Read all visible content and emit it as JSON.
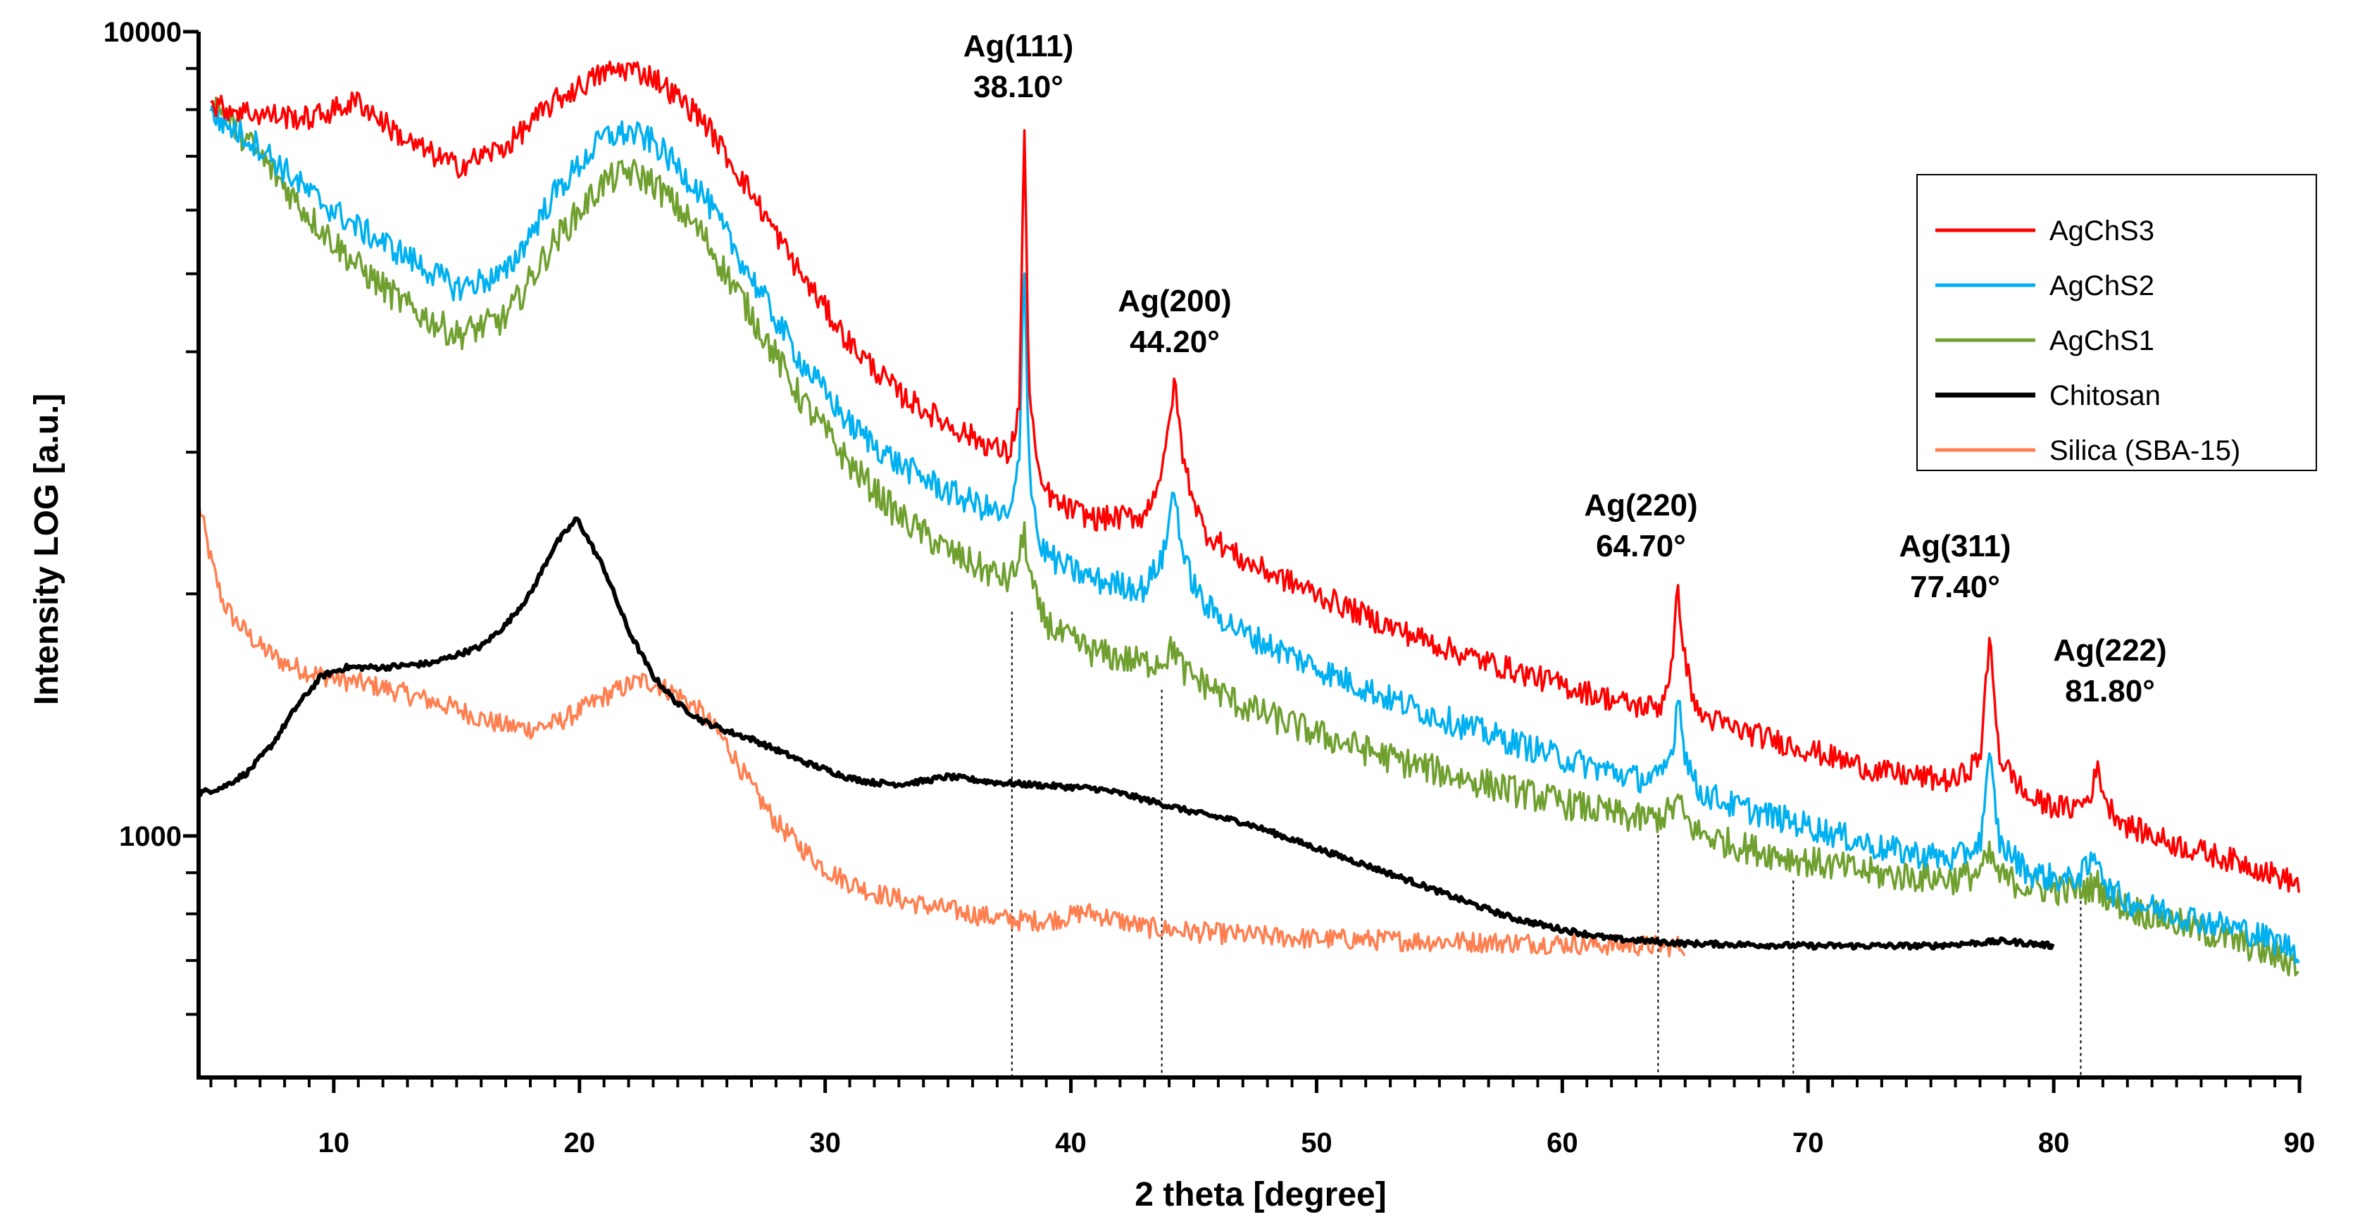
{
  "chart_data": {
    "type": "line",
    "title": "",
    "xlabel": "2 theta [degree]",
    "ylabel": "Intensity LOG [a.u.]",
    "xlim": [
      4.5,
      90
    ],
    "ylim": [
      500,
      10000
    ],
    "yscale": "log",
    "x_ticks": [
      10,
      20,
      30,
      40,
      50,
      60,
      70,
      80,
      90
    ],
    "x_tick_labels": [
      "10",
      "20",
      "30",
      "40",
      "50",
      "60",
      "70",
      "80",
      "90"
    ],
    "y_tick_labels_shown": [
      {
        "value": 10000,
        "label": "10000"
      },
      {
        "value": 1000,
        "label": "1000"
      }
    ],
    "y_minor_ticks": [
      600,
      700,
      800,
      900,
      2000,
      3000,
      4000,
      5000,
      6000,
      7000,
      8000,
      9000
    ],
    "legend_position": "top-right",
    "series": [
      {
        "name": "AgChS3",
        "color": "#ff0000",
        "x": [
          5,
          7,
          9,
          11,
          13,
          15,
          17,
          19,
          21,
          22,
          23,
          25,
          27,
          29,
          31,
          33,
          35,
          36.5,
          37.5,
          37.9,
          38.1,
          38.3,
          38.7,
          39.5,
          41,
          43,
          43.8,
          44.2,
          44.6,
          45.4,
          47,
          50,
          53,
          56,
          60,
          63,
          64,
          64.5,
          64.7,
          65,
          65.5,
          67,
          70,
          73,
          76,
          77,
          77.4,
          77.8,
          79,
          80.6,
          81.4,
          81.8,
          82.2,
          83,
          85,
          88,
          90
        ],
        "y": [
          8100,
          7900,
          7800,
          8200,
          7300,
          6800,
          7200,
          8200,
          8900,
          9000,
          8800,
          7800,
          6300,
          5000,
          4100,
          3550,
          3250,
          3080,
          2980,
          3400,
          7600,
          3600,
          2750,
          2580,
          2480,
          2500,
          2900,
          3680,
          2900,
          2400,
          2200,
          2000,
          1820,
          1680,
          1540,
          1450,
          1450,
          1650,
          2050,
          1650,
          1420,
          1360,
          1280,
          1200,
          1170,
          1250,
          1760,
          1250,
          1110,
          1080,
          1110,
          1210,
          1090,
          1030,
          975,
          920,
          870
        ]
      },
      {
        "name": "AgChS2",
        "color": "#00b0f0",
        "x": [
          5,
          7,
          9,
          11,
          13,
          15,
          17,
          19,
          21,
          22,
          23,
          25,
          27,
          29,
          31,
          33,
          35,
          36.5,
          37.5,
          37.9,
          38.1,
          38.3,
          38.7,
          39.5,
          41,
          43,
          43.8,
          44.2,
          44.6,
          45.4,
          47,
          50,
          53,
          56,
          60,
          63,
          64,
          64.5,
          64.7,
          65,
          65.5,
          67,
          70,
          73,
          76,
          77,
          77.4,
          77.8,
          79,
          80.6,
          81.4,
          81.8,
          82.2,
          83,
          85,
          88,
          90
        ],
        "y": [
          7900,
          7200,
          6300,
          5700,
          5250,
          4800,
          5000,
          6300,
          7400,
          7500,
          7300,
          6300,
          4950,
          3900,
          3250,
          2900,
          2680,
          2560,
          2480,
          2900,
          5300,
          2900,
          2300,
          2180,
          2080,
          2030,
          2250,
          2720,
          2200,
          1940,
          1790,
          1620,
          1480,
          1370,
          1250,
          1180,
          1180,
          1280,
          1520,
          1270,
          1140,
          1090,
          1030,
          965,
          935,
          980,
          1250,
          980,
          900,
          880,
          910,
          950,
          860,
          830,
          800,
          760,
          720
        ]
      },
      {
        "name": "AgChS1",
        "color": "#70a030",
        "x": [
          5,
          7,
          9,
          11,
          13,
          15,
          17,
          19,
          21,
          22,
          23,
          25,
          27,
          29,
          31,
          33,
          35,
          36.5,
          37.5,
          37.9,
          38.1,
          38.3,
          38.7,
          39.5,
          41,
          43,
          43.8,
          44.2,
          44.6,
          45.4,
          47,
          50,
          53,
          56,
          60,
          63,
          64,
          64.5,
          64.7,
          65,
          65.5,
          67,
          70,
          73,
          76,
          77,
          77.4,
          77.8,
          79,
          80.6,
          81.4,
          81.8,
          82.2,
          83,
          85,
          88,
          90
        ],
        "y": [
          8300,
          7000,
          5900,
          5100,
          4550,
          4200,
          4400,
          5500,
          6500,
          6700,
          6500,
          5600,
          4450,
          3500,
          2900,
          2500,
          2260,
          2140,
          2080,
          2200,
          2400,
          2130,
          1900,
          1780,
          1690,
          1640,
          1660,
          1720,
          1600,
          1550,
          1450,
          1340,
          1250,
          1180,
          1100,
          1050,
          1055,
          1080,
          1110,
          1050,
          1010,
          975,
          930,
          895,
          885,
          900,
          945,
          890,
          865,
          855,
          860,
          870,
          840,
          815,
          780,
          730,
          690
        ]
      },
      {
        "name": "Chitosan",
        "color": "#000000",
        "x": [
          4.5,
          5.5,
          6.5,
          7.5,
          8.5,
          9.5,
          10.5,
          12,
          14,
          16,
          17,
          18,
          19,
          19.9,
          21,
          22,
          23,
          24,
          25,
          26,
          27,
          28,
          29,
          30,
          31,
          32,
          33,
          34,
          35,
          36,
          37,
          38,
          39,
          40,
          41,
          42,
          43,
          44,
          45,
          46,
          47,
          48,
          50,
          52,
          54,
          56,
          58,
          60,
          62,
          65,
          70,
          75,
          78,
          80
        ],
        "y": [
          1130,
          1150,
          1200,
          1300,
          1450,
          1580,
          1620,
          1620,
          1640,
          1720,
          1830,
          2000,
          2300,
          2480,
          2150,
          1800,
          1580,
          1460,
          1390,
          1350,
          1320,
          1280,
          1240,
          1210,
          1180,
          1165,
          1160,
          1170,
          1185,
          1175,
          1165,
          1160,
          1155,
          1150,
          1145,
          1130,
          1110,
          1090,
          1070,
          1055,
          1040,
          1015,
          965,
          920,
          875,
          830,
          790,
          765,
          745,
          735,
          730,
          730,
          740,
          730
        ]
      },
      {
        "name": "Silica (SBA-15)",
        "color": "#ff7f50",
        "x": [
          4.5,
          5,
          5.5,
          6,
          7,
          8,
          9,
          10,
          11,
          12,
          13,
          14,
          15,
          16,
          17,
          18,
          19,
          20,
          21,
          22,
          22.5,
          23,
          24,
          25,
          26,
          27,
          28,
          29,
          30,
          31,
          32,
          33,
          34,
          35,
          36,
          37,
          38,
          39,
          40,
          40.5,
          41,
          42,
          43,
          45,
          48,
          50,
          55,
          60,
          62,
          64,
          65
        ],
        "y": [
          2600,
          2200,
          1950,
          1850,
          1720,
          1640,
          1600,
          1570,
          1550,
          1530,
          1500,
          1470,
          1440,
          1400,
          1370,
          1360,
          1380,
          1430,
          1490,
          1540,
          1560,
          1550,
          1500,
          1420,
          1300,
          1150,
          1040,
          970,
          910,
          875,
          850,
          835,
          820,
          810,
          800,
          790,
          785,
          785,
          795,
          805,
          800,
          785,
          770,
          760,
          750,
          745,
          740,
          735,
          732,
          730,
          730
        ]
      }
    ],
    "annotations": [
      {
        "peak": "Ag(111)",
        "angle": "38.10°",
        "x": 38.1
      },
      {
        "peak": "Ag(200)",
        "angle": "44.20°",
        "x": 44.2
      },
      {
        "peak": "Ag(220)",
        "angle": "64.70°",
        "x": 64.7
      },
      {
        "peak": "Ag(311)",
        "angle": "77.40°",
        "x": 77.4
      },
      {
        "peak": "Ag(222)",
        "angle": "81.80°",
        "x": 81.8
      }
    ],
    "reference_lines": [
      {
        "x": 37.6,
        "y_top": 1900
      },
      {
        "x": 43.7,
        "y_top": 1520
      },
      {
        "x": 63.9,
        "y_top": 1040
      },
      {
        "x": 69.4,
        "y_top": 880
      },
      {
        "x": 81.1,
        "y_top": 830
      }
    ]
  }
}
